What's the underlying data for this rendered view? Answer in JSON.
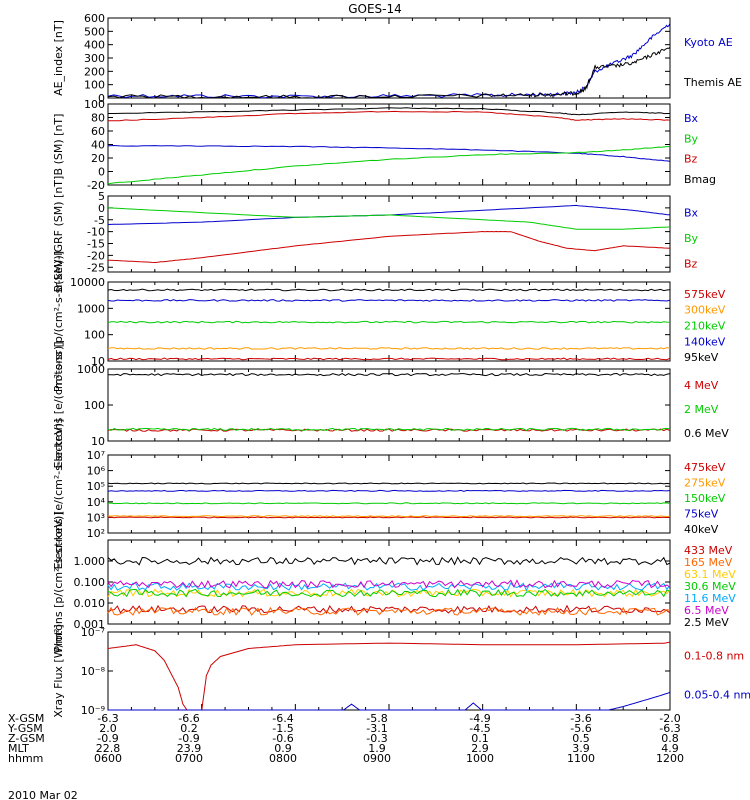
{
  "title": "GOES-14",
  "date_label": "2010 Mar 02",
  "footer": {
    "rows": [
      {
        "label": "X-GSM",
        "values": [
          "-6.3",
          "-6.6",
          "-6.4",
          "-5.8",
          "-4.9",
          "-3.6",
          "-2.0"
        ]
      },
      {
        "label": "Y-GSM",
        "values": [
          "2.0",
          "0.2",
          "-1.5",
          "-3.1",
          "-4.5",
          "-5.6",
          "-6.3"
        ]
      },
      {
        "label": "Z-GSM",
        "values": [
          "-0.9",
          "-0.9",
          "-0.6",
          "-0.3",
          "0.1",
          "0.5",
          "0.8"
        ]
      },
      {
        "label": "MLT",
        "values": [
          "22.8",
          "23.9",
          "0.9",
          "1.9",
          "2.9",
          "3.9",
          "4.9"
        ]
      },
      {
        "label": "hhmm",
        "values": [
          "0600",
          "0700",
          "0800",
          "0900",
          "1000",
          "1100",
          "1200"
        ]
      }
    ]
  },
  "chart_data": [
    {
      "type": "line",
      "ylabel": "AE_index [nT]",
      "ylim": [
        0,
        600
      ],
      "yticks": [
        "0",
        "100",
        "200",
        "300",
        "400",
        "500",
        "600"
      ],
      "x_hours": [
        6,
        12
      ],
      "series": [
        {
          "name": "Kyoto AE",
          "color": "#0000cc",
          "x": [
            6.0,
            7.0,
            8.0,
            9.0,
            10.0,
            10.5,
            10.8,
            11.0,
            11.1,
            11.2,
            11.4,
            11.6,
            11.8,
            12.0
          ],
          "y": [
            18,
            15,
            12,
            15,
            20,
            25,
            30,
            40,
            80,
            200,
            260,
            320,
            450,
            560
          ]
        },
        {
          "name": "Themis AE",
          "color": "#000000",
          "x": [
            6.0,
            7.0,
            8.0,
            9.0,
            10.0,
            10.5,
            10.8,
            11.0,
            11.1,
            11.2,
            11.4,
            11.6,
            11.8,
            12.0
          ],
          "y": [
            12,
            10,
            8,
            12,
            18,
            22,
            28,
            35,
            70,
            230,
            240,
            260,
            320,
            380
          ]
        }
      ]
    },
    {
      "type": "line",
      "ylabel": "B (SM) [nT]",
      "ylim": [
        -20,
        100
      ],
      "yticks": [
        "-20",
        "0",
        "20",
        "40",
        "60",
        "80",
        "100"
      ],
      "series": [
        {
          "name": "Bx",
          "color": "#0000cc",
          "x": [
            6.0,
            7.0,
            8.0,
            9.0,
            10.0,
            11.0,
            11.5,
            12.0
          ],
          "y": [
            38,
            38,
            37,
            35,
            32,
            27,
            22,
            15
          ]
        },
        {
          "name": "By",
          "color": "#00cc00",
          "x": [
            6.0,
            7.0,
            8.0,
            9.0,
            10.0,
            11.0,
            11.5,
            12.0
          ],
          "y": [
            -18,
            -5,
            8,
            18,
            25,
            28,
            32,
            37
          ]
        },
        {
          "name": "Bz",
          "color": "#cc0000",
          "x": [
            6.0,
            7.0,
            8.0,
            9.0,
            10.0,
            10.8,
            11.0,
            11.5,
            12.0
          ],
          "y": [
            75,
            80,
            86,
            89,
            88,
            80,
            76,
            78,
            76
          ]
        },
        {
          "name": "Bmag",
          "color": "#000000",
          "x": [
            6.0,
            7.0,
            8.0,
            9.0,
            10.0,
            10.8,
            11.0,
            11.5,
            12.0
          ],
          "y": [
            86,
            88,
            91,
            94,
            93,
            87,
            84,
            88,
            86
          ]
        }
      ]
    },
    {
      "type": "line",
      "ylabel": "B(SM)-IGRF (SM) [nT]",
      "ylim": [
        -27,
        5
      ],
      "yticks": [
        "-25",
        "-20",
        "-15",
        "-10",
        "-5",
        "0",
        "5"
      ],
      "tick_values": [
        -25,
        -20,
        -15,
        -10,
        -5,
        0,
        5
      ],
      "series": [
        {
          "name": "Bx",
          "color": "#0000cc",
          "x": [
            6.0,
            7.0,
            8.0,
            9.0,
            10.0,
            11.0,
            11.3,
            11.6,
            11.8,
            12.0
          ],
          "y": [
            -7,
            -6,
            -4,
            -3,
            -1,
            1,
            0,
            -1,
            -2,
            -3
          ]
        },
        {
          "name": "By",
          "color": "#00cc00",
          "x": [
            6.0,
            7.0,
            8.0,
            9.0,
            10.0,
            10.5,
            11.0,
            11.5,
            12.0
          ],
          "y": [
            0,
            -2,
            -4,
            -3,
            -5,
            -6,
            -9,
            -9,
            -8
          ]
        },
        {
          "name": "Bz",
          "color": "#cc0000",
          "x": [
            6.0,
            6.5,
            7.0,
            8.0,
            9.0,
            10.0,
            10.3,
            10.6,
            10.9,
            11.2,
            11.5,
            12.0
          ],
          "y": [
            -22,
            -23,
            -21,
            -16,
            -12,
            -10,
            -10,
            -14,
            -17,
            -18,
            -16,
            -17
          ]
        }
      ]
    },
    {
      "type": "line",
      "log": true,
      "ylabel": "Protons [p/(cm²-s-sr-keV)]",
      "ylim": [
        10,
        10000
      ],
      "yticks": [
        "10",
        "100",
        "1000",
        "10000"
      ],
      "series": [
        {
          "name": "575keV",
          "color": "#cc0000",
          "level": 12
        },
        {
          "name": "300keV",
          "color": "#ff9900",
          "level": 30
        },
        {
          "name": "210keV",
          "color": "#00cc00",
          "level": 300
        },
        {
          "name": "140keV",
          "color": "#0000cc",
          "level": 2000
        },
        {
          "name": "95keV",
          "color": "#000000",
          "level": 5000
        }
      ]
    },
    {
      "type": "line",
      "log": true,
      "ylabel": "Electrons [e/(cm²-s-sr)]",
      "ylim": [
        10,
        1000
      ],
      "yticks": [
        "10",
        "100",
        "1000"
      ],
      "series": [
        {
          "name": "4 MeV",
          "color": "#cc0000",
          "level": 20
        },
        {
          "name": "2 MeV",
          "color": "#00cc00",
          "level": 21
        },
        {
          "name": "0.6 MeV",
          "color": "#000000",
          "level": 700
        }
      ]
    },
    {
      "type": "line",
      "log": true,
      "ylabel": "Electrons [e/(cm²-s-sr-keV)]",
      "ylim": [
        100,
        10000000
      ],
      "yticks": [
        "10²",
        "10³",
        "10⁴",
        "10⁵",
        "10⁶",
        "10⁷"
      ],
      "series": [
        {
          "name": "475keV",
          "color": "#cc0000",
          "level": 1000
        },
        {
          "name": "275keV",
          "color": "#ff9900",
          "level": 1200
        },
        {
          "name": "150keV",
          "color": "#00cc00",
          "level": 8000
        },
        {
          "name": "75keV",
          "color": "#0000cc",
          "level": 50000
        },
        {
          "name": "40keV",
          "color": "#000000",
          "level": 150000
        }
      ]
    },
    {
      "type": "line",
      "log": true,
      "ylabel": "Protons [p/(cm²-s-sr-keV)]",
      "ylim": [
        0.001,
        10
      ],
      "yticks": [
        "0.001",
        "0.010",
        "0.100",
        "1.000"
      ],
      "series": [
        {
          "name": "433 MeV",
          "color": "#cc0000",
          "level": 0.005
        },
        {
          "name": "165 MeV",
          "color": "#ff6600",
          "level": 0.004
        },
        {
          "name": "63.1 MeV",
          "color": "#ffcc00",
          "level": 0.03
        },
        {
          "name": "30.6 MeV",
          "color": "#00cc00",
          "level": 0.03
        },
        {
          "name": "11.6 MeV",
          "color": "#00aaff",
          "level": 0.06
        },
        {
          "name": "6.5 MeV",
          "color": "#cc00cc",
          "level": 0.08
        },
        {
          "name": "2.5 MeV",
          "color": "#000000",
          "level": 1.0
        }
      ]
    },
    {
      "type": "line",
      "log": true,
      "ylabel": "Xray Flux [W/m²]",
      "ylim": [
        1e-09,
        1e-07
      ],
      "yticks": [
        "10⁻⁹",
        "10⁻⁸",
        "10⁻⁷"
      ],
      "series": [
        {
          "name": "0.1-0.8 nm",
          "color": "#cc0000",
          "x": [
            6.0,
            6.3,
            6.5,
            6.6,
            6.75,
            6.8,
            6.85,
            6.9,
            7.0,
            7.05,
            7.1,
            7.2,
            7.5,
            8.0,
            9.0,
            10.0,
            11.0,
            12.0
          ],
          "y": [
            4e-08,
            5e-08,
            3.5e-08,
            2e-08,
            4e-09,
            1.5e-09,
            1e-09,
            1e-09,
            1e-09,
            8e-09,
            1.5e-08,
            2.5e-08,
            4e-08,
            5e-08,
            5.5e-08,
            5e-08,
            5e-08,
            5.5e-08
          ]
        },
        {
          "name": "0.05-0.4 nm",
          "color": "#0000cc",
          "x": [
            6.0,
            8.5,
            8.6,
            8.7,
            9.8,
            9.9,
            10.0,
            11.3,
            11.5,
            11.7,
            11.9,
            12.0
          ],
          "y": [
            1e-09,
            1e-09,
            1.5e-09,
            1e-09,
            1e-09,
            1.6e-09,
            1e-09,
            1e-09,
            1.3e-09,
            1.8e-09,
            2.5e-09,
            3e-09
          ]
        }
      ]
    }
  ]
}
